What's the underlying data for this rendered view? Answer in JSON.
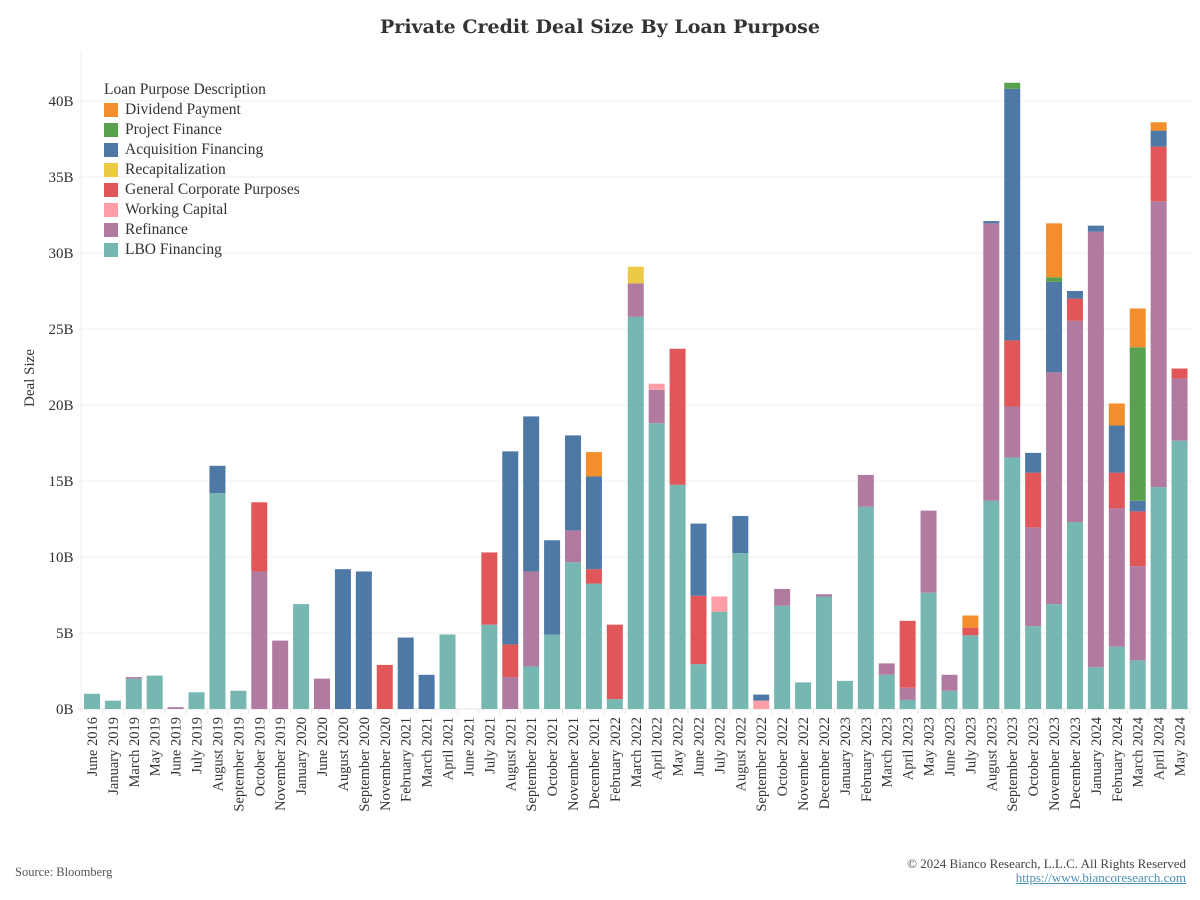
{
  "chart_data": {
    "type": "bar",
    "stacked": true,
    "title": "Private Credit Deal Size By Loan Purpose",
    "xlabel": "",
    "ylabel": "Deal Size",
    "ylim": [
      0,
      42
    ],
    "yticks": [
      0,
      5,
      10,
      15,
      20,
      25,
      30,
      35,
      40
    ],
    "ytick_labels": [
      "0B",
      "5B",
      "10B",
      "15B",
      "20B",
      "25B",
      "30B",
      "35B",
      "40B"
    ],
    "grid": true,
    "legend_title": "Loan Purpose Description",
    "legend_position": "top-left",
    "units": "billions USD",
    "categories": [
      "June 2016",
      "January 2019",
      "March 2019",
      "May 2019",
      "June 2019",
      "July 2019",
      "August 2019",
      "September 2019",
      "October 2019",
      "November 2019",
      "January 2020",
      "June 2020",
      "August 2020",
      "September 2020",
      "November 2020",
      "February 2021",
      "March 2021",
      "April 2021",
      "June 2021",
      "July 2021",
      "August 2021",
      "September 2021",
      "October 2021",
      "November 2021",
      "December 2021",
      "February 2022",
      "March 2022",
      "April 2022",
      "May 2022",
      "June 2022",
      "July 2022",
      "August 2022",
      "September 2022",
      "October 2022",
      "November 2022",
      "December 2022",
      "January 2023",
      "February 2023",
      "March 2023",
      "April 2023",
      "May 2023",
      "June 2023",
      "July 2023",
      "August 2023",
      "September 2023",
      "October 2023",
      "November 2023",
      "December 2023",
      "January 2024",
      "February 2024",
      "March 2024",
      "April 2024",
      "May 2024"
    ],
    "series": [
      {
        "name": "LBO Financing",
        "color": "#76b7b2",
        "values": [
          1.0,
          0.55,
          2.0,
          2.2,
          0,
          1.1,
          14.2,
          1.2,
          0,
          0,
          6.9,
          0,
          0,
          0,
          0,
          0,
          0,
          4.9,
          0,
          5.55,
          0,
          2.8,
          4.9,
          9.65,
          8.25,
          0.65,
          25.8,
          18.8,
          14.75,
          2.95,
          6.4,
          10.25,
          0,
          6.8,
          1.75,
          7.4,
          1.85,
          13.3,
          2.25,
          0.6,
          7.65,
          1.2,
          4.85,
          13.7,
          16.55,
          5.45,
          6.9,
          12.3,
          2.75,
          4.1,
          3.2,
          14.6,
          17.65
        ]
      },
      {
        "name": "Refinance",
        "color": "#b07aa1",
        "values": [
          0,
          0,
          0.1,
          0,
          0.12,
          0,
          0,
          0,
          9.05,
          4.5,
          0,
          2.0,
          0,
          0,
          0,
          0,
          0,
          0,
          0,
          0,
          2.1,
          6.25,
          0,
          2.1,
          0,
          0,
          2.2,
          2.2,
          0,
          0,
          0,
          0,
          0,
          1.1,
          0,
          0.15,
          0,
          2.1,
          0.75,
          0.8,
          5.4,
          1.05,
          0,
          18.25,
          3.35,
          6.5,
          15.25,
          13.25,
          28.65,
          9.1,
          6.2,
          18.8,
          4.1
        ]
      },
      {
        "name": "Working Capital",
        "color": "#ff9da7",
        "values": [
          0,
          0,
          0,
          0,
          0,
          0,
          0,
          0,
          0,
          0,
          0,
          0,
          0,
          0,
          0,
          0,
          0,
          0,
          0,
          0,
          0,
          0,
          0,
          0,
          0,
          0,
          0,
          0.4,
          0,
          0,
          1.0,
          0,
          0.55,
          0,
          0,
          0,
          0,
          0,
          0,
          0,
          0,
          0,
          0,
          0,
          0,
          0,
          0,
          0,
          0,
          0,
          0,
          0,
          0
        ]
      },
      {
        "name": "General Corporate Purposes",
        "color": "#e15759",
        "values": [
          0,
          0,
          0,
          0,
          0,
          0,
          0,
          0,
          4.55,
          0,
          0,
          0,
          0,
          0,
          2.9,
          0,
          0,
          0,
          0,
          4.75,
          2.15,
          0,
          0,
          0,
          0.95,
          4.9,
          0,
          0,
          8.95,
          4.5,
          0,
          0,
          0,
          0,
          0,
          0,
          0,
          0,
          0,
          4.4,
          0,
          0,
          0.5,
          0,
          4.35,
          3.6,
          0,
          1.45,
          0,
          2.35,
          3.6,
          3.6,
          0.65
        ]
      },
      {
        "name": "Recapitalization",
        "color": "#edc948",
        "values": [
          0,
          0,
          0,
          0,
          0,
          0,
          0,
          0,
          0,
          0,
          0,
          0,
          0,
          0,
          0,
          0,
          0,
          0,
          0,
          0,
          0,
          0,
          0,
          0,
          0,
          0,
          1.1,
          0,
          0,
          0,
          0,
          0,
          0,
          0,
          0,
          0,
          0,
          0,
          0,
          0,
          0,
          0,
          0,
          0,
          0,
          0,
          0,
          0,
          0,
          0,
          0,
          0,
          0
        ]
      },
      {
        "name": "Acquisition Financing",
        "color": "#4e79a7",
        "values": [
          0,
          0,
          0,
          0,
          0,
          0,
          1.8,
          0,
          0,
          0,
          0,
          0,
          9.2,
          9.05,
          0,
          4.7,
          2.25,
          0,
          0,
          0,
          12.7,
          10.2,
          6.2,
          6.25,
          6.1,
          0,
          0,
          0,
          0,
          4.75,
          0,
          2.45,
          0.4,
          0,
          0,
          0,
          0,
          0,
          0,
          0,
          0,
          0,
          0,
          0.15,
          16.55,
          1.3,
          5.95,
          0.5,
          0.4,
          3.1,
          0.7,
          1.05,
          0
        ]
      },
      {
        "name": "Project Finance",
        "color": "#59a14f",
        "values": [
          0,
          0,
          0,
          0,
          0,
          0,
          0,
          0,
          0,
          0,
          0,
          0,
          0,
          0,
          0,
          0,
          0,
          0,
          0,
          0,
          0,
          0,
          0,
          0,
          0,
          0,
          0,
          0,
          0,
          0,
          0,
          0,
          0,
          0,
          0,
          0,
          0,
          0,
          0,
          0,
          0,
          0,
          0,
          0,
          0.4,
          0,
          0.3,
          0,
          0,
          0,
          10.1,
          0,
          0
        ]
      },
      {
        "name": "Dividend Payment",
        "color": "#f28e2b",
        "values": [
          0,
          0,
          0,
          0,
          0,
          0,
          0,
          0,
          0,
          0,
          0,
          0,
          0,
          0,
          0,
          0,
          0,
          0,
          0,
          0,
          0,
          0,
          0,
          0,
          1.6,
          0,
          0,
          0,
          0,
          0,
          0,
          0,
          0,
          0,
          0,
          0,
          0,
          0,
          0,
          0,
          0,
          0,
          0.8,
          0,
          0,
          0,
          3.55,
          0,
          0,
          1.45,
          2.55,
          0.55,
          0
        ]
      }
    ]
  },
  "legend": {
    "title": "Loan Purpose Description",
    "items": [
      {
        "label": "Dividend Payment",
        "color": "#f28e2b"
      },
      {
        "label": "Project Finance",
        "color": "#59a14f"
      },
      {
        "label": "Acquisition Financing",
        "color": "#4e79a7"
      },
      {
        "label": "Recapitalization",
        "color": "#edc948"
      },
      {
        "label": "General Corporate Purposes",
        "color": "#e15759"
      },
      {
        "label": "Working Capital",
        "color": "#ff9da7"
      },
      {
        "label": "Refinance",
        "color": "#b07aa1"
      },
      {
        "label": "LBO Financing",
        "color": "#76b7b2"
      }
    ]
  },
  "footer": {
    "source": "Source: Bloomberg",
    "copyright": "© 2024 Bianco Research, L.L.C. All Rights Reserved",
    "link": "https://www.biancoresearch.com"
  }
}
